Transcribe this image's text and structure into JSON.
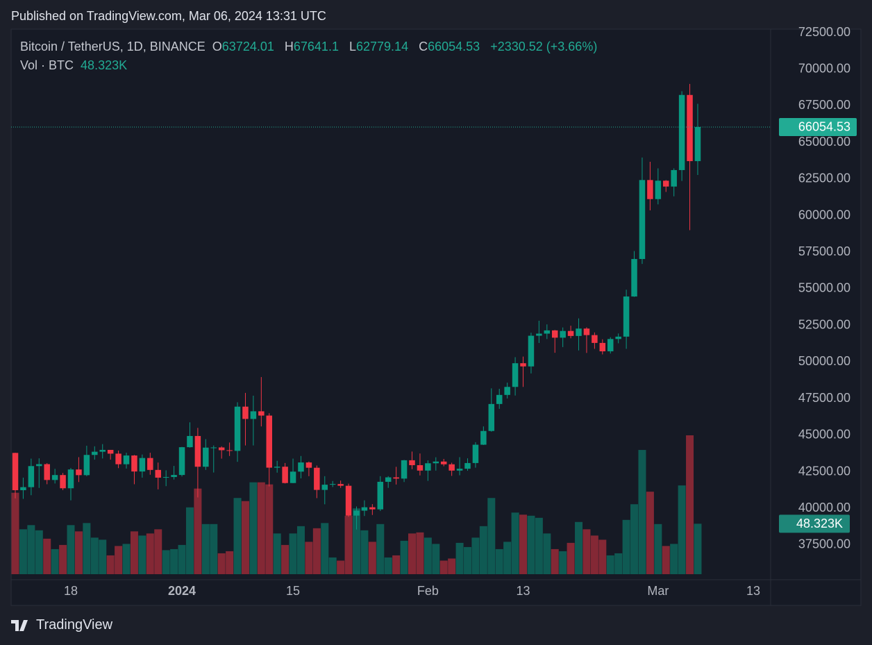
{
  "header": "Published on TradingView.com, Mar 06, 2024 13:31 UTC",
  "brand": "TradingView",
  "chart_data": {
    "type": "candlestick",
    "title": "Bitcoin / TetherUS, 1D, BINANCE",
    "ohlc_labels": [
      "O",
      "H",
      "L",
      "C"
    ],
    "change": {
      "value": 2330.52,
      "label": "+2330.52"
    },
    "change_pct": {
      "value": 3.66,
      "label": "(+3.66%)"
    },
    "volume_title": "Vol · BTC",
    "volume_label": "48.323K",
    "up_color": "#089981",
    "down_color": "#f23645",
    "x": [
      "2023-12-11",
      "2023-12-12",
      "2023-12-13",
      "2023-12-14",
      "2023-12-15",
      "2023-12-16",
      "2023-12-17",
      "2023-12-18",
      "2023-12-19",
      "2023-12-20",
      "2023-12-21",
      "2023-12-22",
      "2023-12-23",
      "2023-12-24",
      "2023-12-25",
      "2023-12-26",
      "2023-12-27",
      "2023-12-28",
      "2023-12-29",
      "2023-12-30",
      "2023-12-31",
      "2024-01-01",
      "2024-01-02",
      "2024-01-03",
      "2024-01-04",
      "2024-01-05",
      "2024-01-06",
      "2024-01-07",
      "2024-01-08",
      "2024-01-09",
      "2024-01-10",
      "2024-01-11",
      "2024-01-12",
      "2024-01-13",
      "2024-01-14",
      "2024-01-15",
      "2024-01-16",
      "2024-01-17",
      "2024-01-18",
      "2024-01-19",
      "2024-01-20",
      "2024-01-21",
      "2024-01-22",
      "2024-01-23",
      "2024-01-24",
      "2024-01-25",
      "2024-01-26",
      "2024-01-27",
      "2024-01-28",
      "2024-01-29",
      "2024-01-30",
      "2024-01-31",
      "2024-02-01",
      "2024-02-02",
      "2024-02-03",
      "2024-02-04",
      "2024-02-05",
      "2024-02-06",
      "2024-02-07",
      "2024-02-08",
      "2024-02-09",
      "2024-02-10",
      "2024-02-11",
      "2024-02-12",
      "2024-02-13",
      "2024-02-14",
      "2024-02-15",
      "2024-02-16",
      "2024-02-17",
      "2024-02-18",
      "2024-02-19",
      "2024-02-20",
      "2024-02-21",
      "2024-02-22",
      "2024-02-23",
      "2024-02-24",
      "2024-02-25",
      "2024-02-26",
      "2024-02-27",
      "2024-02-28",
      "2024-02-29",
      "2024-03-01",
      "2024-03-02",
      "2024-03-03",
      "2024-03-04",
      "2024-03-05",
      "2024-03-06"
    ],
    "open": [
      43790,
      41243,
      41450,
      42890,
      43022,
      41940,
      42278,
      41374,
      42657,
      42271,
      43652,
      43870,
      43997,
      43739,
      43016,
      43613,
      42520,
      43442,
      42627,
      42099,
      42142,
      42283,
      44180,
      44946,
      42845,
      44151,
      44162,
      43974,
      43929,
      46951,
      46110,
      46633,
      46340,
      42782,
      42847,
      41732,
      42511,
      43137,
      42776,
      41262,
      41618,
      41665,
      41545,
      39507,
      39845,
      40077,
      39933,
      41816,
      42120,
      42035,
      43288,
      42952,
      42582,
      43082,
      43200,
      43011,
      42582,
      42708,
      43098,
      44349,
      45288,
      47132,
      47751,
      48299,
      49917,
      49699,
      51795,
      51939,
      52160,
      51662,
      52122,
      51779,
      52284,
      51839,
      51304,
      50731,
      51571,
      51733,
      54476,
      57037,
      62432,
      61130,
      62387,
      61987,
      63113,
      68245,
      63724.01
    ],
    "high": [
      43800,
      42100,
      43400,
      43420,
      43090,
      42700,
      42420,
      42760,
      43500,
      44280,
      44240,
      44390,
      43990,
      43950,
      43800,
      43650,
      43680,
      43800,
      43130,
      42600,
      42900,
      44200,
      45880,
      45500,
      44730,
      44300,
      44240,
      44500,
      47250,
      47890,
      47700,
      48970,
      46500,
      43250,
      43100,
      43400,
      43580,
      43200,
      42930,
      42200,
      41870,
      41900,
      41690,
      40130,
      40550,
      40290,
      42200,
      42200,
      42840,
      43310,
      43880,
      43750,
      43280,
      43490,
      43380,
      43120,
      43500,
      43420,
      44520,
      45600,
      48200,
      48170,
      48590,
      50330,
      50370,
      52000,
      52820,
      52570,
      52190,
      52360,
      52480,
      52980,
      52370,
      52020,
      51550,
      51690,
      51950,
      54940,
      57580,
      63970,
      63680,
      63230,
      62430,
      63230,
      68500,
      69000,
      67641.1
    ],
    "low": [
      40680,
      40650,
      40900,
      41400,
      41650,
      41700,
      41250,
      40550,
      41800,
      42200,
      43330,
      43410,
      43330,
      42750,
      42720,
      41650,
      42100,
      42300,
      41300,
      41520,
      41970,
      42180,
      44150,
      40750,
      42630,
      42450,
      43400,
      43580,
      43180,
      44300,
      44300,
      45600,
      41500,
      42440,
      41700,
      41720,
      42050,
      42200,
      40700,
      40280,
      41460,
      41400,
      39430,
      38555,
      39480,
      39550,
      39820,
      41400,
      41630,
      41800,
      42680,
      42250,
      41880,
      42580,
      42880,
      42220,
      42260,
      42570,
      42780,
      44330,
      45240,
      46800,
      47510,
      47710,
      48300,
      49220,
      51300,
      51570,
      50630,
      51020,
      51620,
      50790,
      50620,
      50900,
      50520,
      50580,
      51280,
      50900,
      54450,
      56700,
      60360,
      60770,
      61620,
      61320,
      62370,
      59005,
      62779.14
    ],
    "close": [
      41243,
      41450,
      42890,
      43022,
      41940,
      42278,
      41374,
      42657,
      42271,
      43652,
      43870,
      43997,
      43739,
      43016,
      43613,
      42520,
      43442,
      42627,
      42099,
      42142,
      42283,
      44180,
      44946,
      42845,
      44151,
      44162,
      43974,
      43929,
      46951,
      46110,
      46633,
      46340,
      42782,
      42847,
      41732,
      42511,
      43137,
      42776,
      41262,
      41618,
      41665,
      41545,
      39507,
      39845,
      40077,
      39933,
      41816,
      42120,
      42035,
      43288,
      42952,
      42582,
      43082,
      43200,
      43011,
      42582,
      42708,
      43098,
      44349,
      45288,
      47132,
      47751,
      48299,
      49917,
      49699,
      51795,
      51939,
      52160,
      51662,
      52122,
      51779,
      52284,
      51839,
      51304,
      50731,
      51571,
      51733,
      54476,
      57037,
      62432,
      61130,
      62387,
      61987,
      63113,
      68245,
      63724,
      66054.53
    ],
    "volume": [
      78000,
      43000,
      47000,
      42000,
      34000,
      24000,
      28000,
      47000,
      41000,
      49000,
      35000,
      33000,
      18000,
      27000,
      29000,
      41000,
      37000,
      39000,
      43000,
      23000,
      24000,
      28000,
      64000,
      82000,
      48000,
      48000,
      20000,
      22000,
      73000,
      70000,
      88000,
      88000,
      86000,
      39000,
      28000,
      39000,
      46000,
      31000,
      44000,
      49000,
      16000,
      13000,
      56000,
      63000,
      42000,
      31000,
      48000,
      16000,
      18000,
      32000,
      39000,
      40000,
      35000,
      29000,
      13000,
      15000,
      30000,
      26000,
      35000,
      46000,
      73000,
      24000,
      31000,
      59000,
      57000,
      56000,
      54000,
      39000,
      24000,
      22000,
      30000,
      50000,
      43000,
      37000,
      33000,
      18000,
      20000,
      52000,
      67000,
      119000,
      79000,
      48000,
      27000,
      29000,
      85000,
      133000,
      48323
    ],
    "ylim": [
      35125,
      72740
    ],
    "yticks": [
      {
        "value": 37500,
        "label": "37500.00"
      },
      {
        "value": 40000,
        "label": "40000.00"
      },
      {
        "value": 42500,
        "label": "42500.00"
      },
      {
        "value": 45000,
        "label": "45000.00"
      },
      {
        "value": 47500,
        "label": "47500.00"
      },
      {
        "value": 50000,
        "label": "50000.00"
      },
      {
        "value": 52500,
        "label": "52500.00"
      },
      {
        "value": 55000,
        "label": "55000.00"
      },
      {
        "value": 57500,
        "label": "57500.00"
      },
      {
        "value": 60000,
        "label": "60000.00"
      },
      {
        "value": 62500,
        "label": "62500.00"
      },
      {
        "value": 65000,
        "label": "65000.00"
      },
      {
        "value": 67500,
        "label": "67500.00"
      },
      {
        "value": 70000,
        "label": "70000.00"
      },
      {
        "value": 72500,
        "label": "72500.00"
      }
    ],
    "xticks": [
      {
        "value": "2023-12-18",
        "label": "18"
      },
      {
        "value": "2024-01-01",
        "label": "2024"
      },
      {
        "value": "2024-01-15",
        "label": "15"
      },
      {
        "value": "2024-02-01",
        "label": "Feb"
      },
      {
        "value": "2024-02-13",
        "label": "13"
      },
      {
        "value": "2024-03-01",
        "label": "Mar"
      },
      {
        "value": "2024-03-13",
        "label": "13"
      }
    ],
    "grid": true
  }
}
